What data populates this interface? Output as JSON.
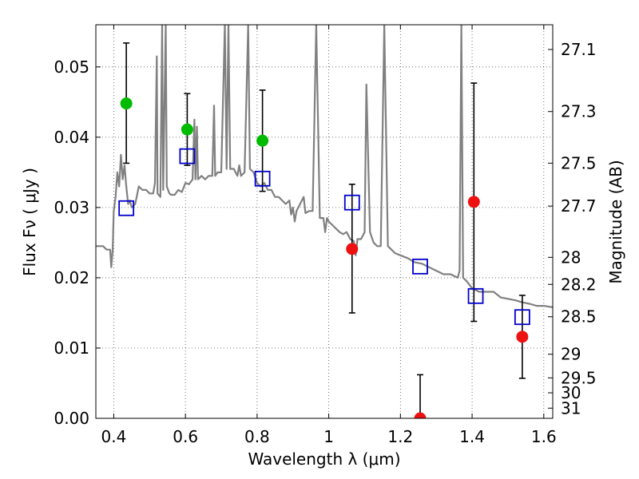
{
  "chart_data": {
    "type": "scatter",
    "xlabel": "Wavelength  λ (μm)",
    "ylabel": "Flux  Fν  ( μJy )",
    "y2label": "Magnitude (AB)",
    "xlim": [
      0.35,
      1.625
    ],
    "ylim": [
      0.0,
      0.056
    ],
    "x_ticks": [
      {
        "value": 0.4,
        "label": "0.4"
      },
      {
        "value": 0.6,
        "label": "0.6"
      },
      {
        "value": 0.8,
        "label": "0.8"
      },
      {
        "value": 1.0,
        "label": "1"
      },
      {
        "value": 1.2,
        "label": "1.2"
      },
      {
        "value": 1.4,
        "label": "1.4"
      },
      {
        "value": 1.6,
        "label": "1.6"
      }
    ],
    "y_ticks": [
      {
        "value": 0.0,
        "label": "0.00"
      },
      {
        "value": 0.01,
        "label": "0.01"
      },
      {
        "value": 0.02,
        "label": "0.02"
      },
      {
        "value": 0.03,
        "label": "0.03"
      },
      {
        "value": 0.04,
        "label": "0.04"
      },
      {
        "value": 0.05,
        "label": "0.05"
      }
    ],
    "y2_ticks": [
      {
        "mag": 27.1,
        "label": "27.1"
      },
      {
        "mag": 27.3,
        "label": "27.3"
      },
      {
        "mag": 27.5,
        "label": "27.5"
      },
      {
        "mag": 27.7,
        "label": "27.7"
      },
      {
        "mag": 28.0,
        "label": "28"
      },
      {
        "mag": 28.2,
        "label": "28.2"
      },
      {
        "mag": 28.5,
        "label": "28.5"
      },
      {
        "mag": 29.0,
        "label": "29"
      },
      {
        "mag": 29.5,
        "label": "29.5"
      },
      {
        "mag": 30.0,
        "label": "30"
      },
      {
        "mag": 31.0,
        "label": "31"
      }
    ],
    "grid": true,
    "colors": {
      "spectrum": "#808080",
      "model": "#0000cc",
      "detection": "#00bb00",
      "nondetection": "#ee1111",
      "errorbar": "#000000"
    },
    "spectrum": {
      "points": [
        [
          0.35,
          0.0245
        ],
        [
          0.37,
          0.0245
        ],
        [
          0.38,
          0.024
        ],
        [
          0.39,
          0.024
        ],
        [
          0.393,
          0.0215
        ],
        [
          0.397,
          0.024
        ],
        [
          0.4,
          0.0295
        ],
        [
          0.405,
          0.0315
        ],
        [
          0.41,
          0.035
        ],
        [
          0.415,
          0.033
        ],
        [
          0.42,
          0.0375
        ],
        [
          0.425,
          0.034
        ],
        [
          0.43,
          0.036
        ],
        [
          0.435,
          0.033
        ],
        [
          0.44,
          0.0305
        ],
        [
          0.445,
          0.031
        ],
        [
          0.45,
          0.03
        ],
        [
          0.46,
          0.0305
        ],
        [
          0.47,
          0.033
        ],
        [
          0.48,
          0.0325
        ],
        [
          0.49,
          0.0325
        ],
        [
          0.5,
          0.032
        ],
        [
          0.51,
          0.032
        ],
        [
          0.515,
          0.0335
        ],
        [
          0.52,
          0.0515
        ],
        [
          0.522,
          0.032
        ],
        [
          0.53,
          0.0315
        ],
        [
          0.535,
          0.056
        ],
        [
          0.538,
          0.0325
        ],
        [
          0.545,
          0.056
        ],
        [
          0.548,
          0.033
        ],
        [
          0.555,
          0.032
        ],
        [
          0.56,
          0.0318
        ],
        [
          0.57,
          0.0318
        ],
        [
          0.58,
          0.0325
        ],
        [
          0.59,
          0.0322
        ],
        [
          0.6,
          0.0335
        ],
        [
          0.61,
          0.0333
        ],
        [
          0.62,
          0.034
        ],
        [
          0.625,
          0.0425
        ],
        [
          0.628,
          0.034
        ],
        [
          0.632,
          0.0415
        ],
        [
          0.635,
          0.034
        ],
        [
          0.645,
          0.0345
        ],
        [
          0.655,
          0.034
        ],
        [
          0.665,
          0.0345
        ],
        [
          0.675,
          0.0345
        ],
        [
          0.68,
          0.0445
        ],
        [
          0.683,
          0.0345
        ],
        [
          0.69,
          0.035
        ],
        [
          0.7,
          0.035
        ],
        [
          0.71,
          0.056
        ],
        [
          0.715,
          0.0355
        ],
        [
          0.72,
          0.056
        ],
        [
          0.725,
          0.0355
        ],
        [
          0.735,
          0.0355
        ],
        [
          0.745,
          0.0345
        ],
        [
          0.75,
          0.036
        ],
        [
          0.755,
          0.0345
        ],
        [
          0.765,
          0.035
        ],
        [
          0.775,
          0.056
        ],
        [
          0.78,
          0.0355
        ],
        [
          0.79,
          0.035
        ],
        [
          0.8,
          0.0335
        ],
        [
          0.81,
          0.033
        ],
        [
          0.82,
          0.0335
        ],
        [
          0.83,
          0.0325
        ],
        [
          0.84,
          0.0325
        ],
        [
          0.85,
          0.0315
        ],
        [
          0.86,
          0.0315
        ],
        [
          0.87,
          0.031
        ],
        [
          0.88,
          0.0305
        ],
        [
          0.89,
          0.031
        ],
        [
          0.895,
          0.029
        ],
        [
          0.9,
          0.03
        ],
        [
          0.905,
          0.028
        ],
        [
          0.91,
          0.0295
        ],
        [
          0.92,
          0.0305
        ],
        [
          0.93,
          0.0315
        ],
        [
          0.935,
          0.0292
        ],
        [
          0.945,
          0.0295
        ],
        [
          0.955,
          0.0295
        ],
        [
          0.965,
          0.056
        ],
        [
          0.975,
          0.0285
        ],
        [
          0.985,
          0.0285
        ],
        [
          0.99,
          0.0265
        ],
        [
          0.995,
          0.0285
        ],
        [
          1.0,
          0.028
        ],
        [
          1.01,
          0.0275
        ],
        [
          1.02,
          0.027
        ],
        [
          1.03,
          0.0265
        ],
        [
          1.04,
          0.0262
        ],
        [
          1.05,
          0.0265
        ],
        [
          1.06,
          0.0255
        ],
        [
          1.07,
          0.0252
        ],
        [
          1.075,
          0.0232
        ],
        [
          1.08,
          0.0255
        ],
        [
          1.09,
          0.0255
        ],
        [
          1.1,
          0.0265
        ],
        [
          1.105,
          0.0475
        ],
        [
          1.115,
          0.0265
        ],
        [
          1.125,
          0.025
        ],
        [
          1.135,
          0.0245
        ],
        [
          1.145,
          0.0245
        ],
        [
          1.155,
          0.056
        ],
        [
          1.165,
          0.0245
        ],
        [
          1.175,
          0.024
        ],
        [
          1.185,
          0.0235
        ],
        [
          1.2,
          0.0232
        ],
        [
          1.22,
          0.0228
        ],
        [
          1.24,
          0.0222
        ],
        [
          1.26,
          0.022
        ],
        [
          1.28,
          0.0215
        ],
        [
          1.3,
          0.021
        ],
        [
          1.32,
          0.0205
        ],
        [
          1.34,
          0.0205
        ],
        [
          1.36,
          0.02
        ],
        [
          1.365,
          0.021
        ],
        [
          1.37,
          0.056
        ],
        [
          1.375,
          0.02
        ],
        [
          1.385,
          0.0195
        ],
        [
          1.4,
          0.0185
        ],
        [
          1.42,
          0.018
        ],
        [
          1.44,
          0.018
        ],
        [
          1.46,
          0.018
        ],
        [
          1.48,
          0.0172
        ],
        [
          1.5,
          0.017
        ],
        [
          1.52,
          0.0168
        ],
        [
          1.54,
          0.0165
        ],
        [
          1.56,
          0.0163
        ],
        [
          1.58,
          0.016
        ],
        [
          1.6,
          0.016
        ],
        [
          1.625,
          0.0158
        ]
      ]
    },
    "model_points": [
      {
        "x": 0.435,
        "y": 0.0299
      },
      {
        "x": 0.605,
        "y": 0.0373
      },
      {
        "x": 0.815,
        "y": 0.0341
      },
      {
        "x": 1.065,
        "y": 0.0307
      },
      {
        "x": 1.255,
        "y": 0.0216
      },
      {
        "x": 1.41,
        "y": 0.0174
      },
      {
        "x": 1.54,
        "y": 0.0144
      }
    ],
    "detections": [
      {
        "x": 0.435,
        "y": 0.0448,
        "yerr_low": 0.0363,
        "yerr_high": 0.0534
      },
      {
        "x": 0.605,
        "y": 0.0411,
        "yerr_low": 0.036,
        "yerr_high": 0.0462
      },
      {
        "x": 0.815,
        "y": 0.0395,
        "yerr_low": 0.0323,
        "yerr_high": 0.0467
      }
    ],
    "nondetections": [
      {
        "x": 1.065,
        "y": 0.0241,
        "yerr_low": 0.015,
        "yerr_high": 0.0333
      },
      {
        "x": 1.255,
        "y": 0.0,
        "yerr_low": 0.0,
        "yerr_high": 0.0062
      },
      {
        "x": 1.405,
        "y": 0.0308,
        "yerr_low": 0.0138,
        "yerr_high": 0.0477
      },
      {
        "x": 1.54,
        "y": 0.0116,
        "yerr_low": 0.0057,
        "yerr_high": 0.0175
      }
    ]
  }
}
